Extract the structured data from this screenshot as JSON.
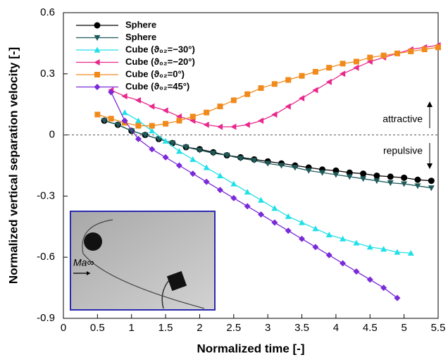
{
  "chart_data": {
    "type": "line",
    "xlabel": "Normalized time [-]",
    "ylabel": "Normalized vertical separation velocity [-]",
    "xlim": [
      0,
      5.5
    ],
    "ylim": [
      -0.9,
      0.6
    ],
    "xticks": [
      0,
      0.5,
      1,
      1.5,
      2,
      2.5,
      3,
      3.5,
      4,
      4.5,
      5,
      5.5
    ],
    "yticks": [
      -0.9,
      -0.6,
      -0.3,
      0,
      0.3,
      0.6
    ],
    "hline": 0,
    "annotations": [
      "attractive",
      "repulsive",
      "Ma∞"
    ],
    "legend": "upper left",
    "series": [
      {
        "name": "Sphere",
        "color": "#000000",
        "marker": "circle",
        "x": [
          0.6,
          0.8,
          1.0,
          1.2,
          1.4,
          1.6,
          1.8,
          2.0,
          2.2,
          2.4,
          2.6,
          2.8,
          3.0,
          3.2,
          3.4,
          3.6,
          3.8,
          4.0,
          4.2,
          4.4,
          4.6,
          4.8,
          5.0,
          5.2,
          5.4
        ],
        "values": [
          0.07,
          0.05,
          0.02,
          0.0,
          -0.02,
          -0.04,
          -0.06,
          -0.07,
          -0.085,
          -0.1,
          -0.11,
          -0.12,
          -0.13,
          -0.14,
          -0.15,
          -0.16,
          -0.17,
          -0.175,
          -0.185,
          -0.19,
          -0.2,
          -0.205,
          -0.21,
          -0.22,
          -0.225
        ]
      },
      {
        "name": "Sphere",
        "color": "#1f5a5a",
        "marker": "triangle-down",
        "x": [
          0.6,
          0.8,
          1.0,
          1.2,
          1.4,
          1.6,
          1.8,
          2.0,
          2.2,
          2.4,
          2.6,
          2.8,
          3.0,
          3.2,
          3.4,
          3.6,
          3.8,
          4.0,
          4.2,
          4.4,
          4.6,
          4.8,
          5.0,
          5.2,
          5.4
        ],
        "values": [
          0.07,
          0.05,
          0.02,
          0.0,
          -0.02,
          -0.04,
          -0.06,
          -0.075,
          -0.09,
          -0.1,
          -0.115,
          -0.125,
          -0.14,
          -0.15,
          -0.16,
          -0.175,
          -0.185,
          -0.195,
          -0.205,
          -0.215,
          -0.225,
          -0.235,
          -0.24,
          -0.25,
          -0.26
        ]
      },
      {
        "name": "Cube (ϑ₀₂=−30°)",
        "color": "#22e0e8",
        "marker": "triangle-up",
        "x": [
          0.9,
          1.1,
          1.3,
          1.5,
          1.7,
          1.9,
          2.1,
          2.3,
          2.5,
          2.7,
          2.9,
          3.1,
          3.3,
          3.5,
          3.7,
          3.9,
          4.1,
          4.3,
          4.5,
          4.7,
          4.9,
          5.1
        ],
        "values": [
          0.11,
          0.07,
          0.02,
          -0.03,
          -0.08,
          -0.12,
          -0.16,
          -0.2,
          -0.24,
          -0.28,
          -0.32,
          -0.36,
          -0.4,
          -0.43,
          -0.46,
          -0.49,
          -0.51,
          -0.53,
          -0.55,
          -0.56,
          -0.575,
          -0.58
        ]
      },
      {
        "name": "Cube (ϑ₀₂=−20°)",
        "color": "#e8288c",
        "marker": "triangle-left",
        "x": [
          0.7,
          0.9,
          1.1,
          1.3,
          1.5,
          1.7,
          1.9,
          2.1,
          2.3,
          2.5,
          2.7,
          2.9,
          3.1,
          3.3,
          3.5,
          3.7,
          3.9,
          4.1,
          4.3,
          4.5,
          4.7,
          4.9,
          5.1,
          5.3,
          5.5
        ],
        "values": [
          0.22,
          0.19,
          0.17,
          0.14,
          0.12,
          0.09,
          0.07,
          0.05,
          0.04,
          0.04,
          0.05,
          0.07,
          0.1,
          0.14,
          0.18,
          0.22,
          0.26,
          0.3,
          0.33,
          0.36,
          0.38,
          0.4,
          0.42,
          0.43,
          0.44
        ]
      },
      {
        "name": "Cube (ϑ₀₂=0°)",
        "color": "#f08a1c",
        "marker": "square",
        "x": [
          0.5,
          0.7,
          0.9,
          1.1,
          1.3,
          1.5,
          1.7,
          1.9,
          2.1,
          2.3,
          2.5,
          2.7,
          2.9,
          3.1,
          3.3,
          3.5,
          3.7,
          3.9,
          4.1,
          4.3,
          4.5,
          4.7,
          4.9,
          5.1,
          5.3,
          5.5
        ],
        "values": [
          0.1,
          0.08,
          0.06,
          0.045,
          0.045,
          0.055,
          0.07,
          0.09,
          0.11,
          0.14,
          0.17,
          0.2,
          0.23,
          0.25,
          0.27,
          0.29,
          0.31,
          0.33,
          0.35,
          0.36,
          0.38,
          0.39,
          0.4,
          0.41,
          0.42,
          0.43
        ]
      },
      {
        "name": "Cube (ϑ₀₂=45°)",
        "color": "#7a2ad8",
        "marker": "diamond",
        "x": [
          0.7,
          0.9,
          1.1,
          1.3,
          1.5,
          1.7,
          1.9,
          2.1,
          2.3,
          2.5,
          2.7,
          2.9,
          3.1,
          3.3,
          3.5,
          3.7,
          3.9,
          4.1,
          4.3,
          4.5,
          4.7,
          4.9
        ],
        "values": [
          0.21,
          0.07,
          -0.02,
          -0.07,
          -0.11,
          -0.15,
          -0.19,
          -0.23,
          -0.27,
          -0.31,
          -0.35,
          -0.39,
          -0.43,
          -0.47,
          -0.51,
          -0.55,
          -0.59,
          -0.63,
          -0.67,
          -0.71,
          -0.75,
          -0.8
        ]
      }
    ]
  }
}
